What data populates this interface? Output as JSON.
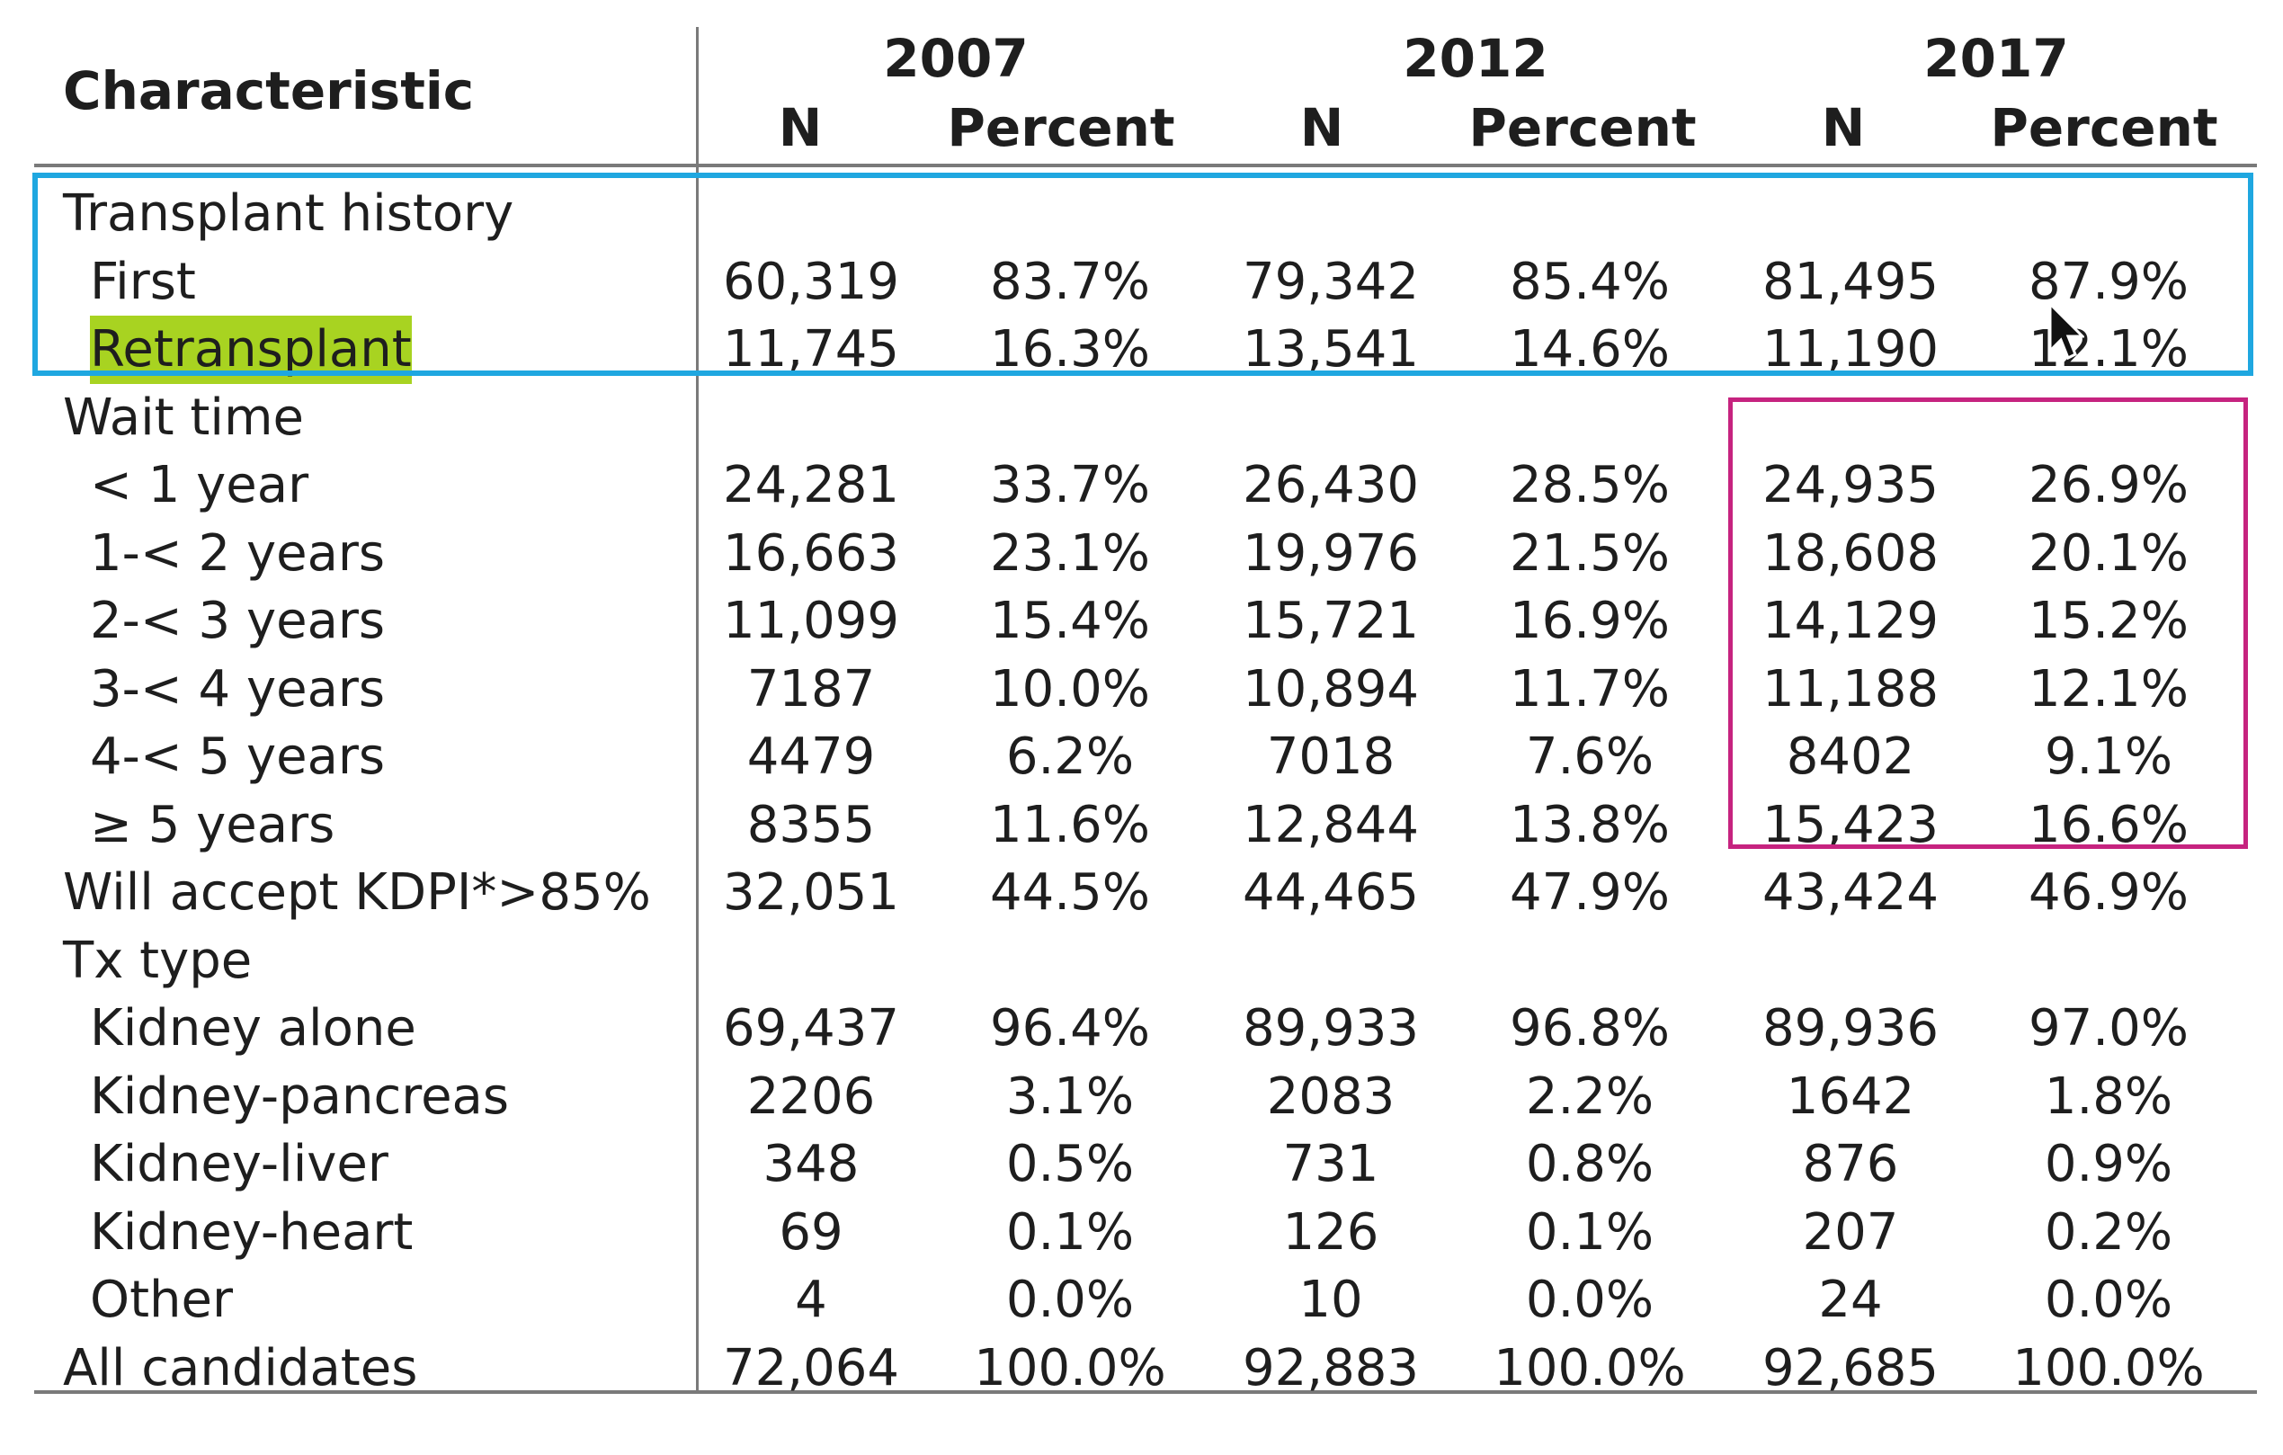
{
  "header": {
    "characteristic": "Characteristic",
    "years": [
      "2007",
      "2012",
      "2017"
    ],
    "n_label": "N",
    "percent_label": "Percent"
  },
  "rows": [
    {
      "label": "Transplant history",
      "indent": false,
      "cells": [
        "",
        "",
        "",
        "",
        "",
        ""
      ]
    },
    {
      "label": "First",
      "indent": true,
      "cells": [
        "60,319",
        "83.7%",
        "79,342",
        "85.4%",
        "81,495",
        "87.9%"
      ]
    },
    {
      "label": "Retransplant",
      "indent": true,
      "highlight": true,
      "cells": [
        "11,745",
        "16.3%",
        "13,541",
        "14.6%",
        "11,190",
        "12.1%"
      ]
    },
    {
      "label": "Wait time",
      "indent": false,
      "cells": [
        "",
        "",
        "",
        "",
        "",
        ""
      ]
    },
    {
      "label": "< 1 year",
      "indent": true,
      "cells": [
        "24,281",
        "33.7%",
        "26,430",
        "28.5%",
        "24,935",
        "26.9%"
      ]
    },
    {
      "label": "1-< 2 years",
      "indent": true,
      "cells": [
        "16,663",
        "23.1%",
        "19,976",
        "21.5%",
        "18,608",
        "20.1%"
      ]
    },
    {
      "label": "2-< 3 years",
      "indent": true,
      "cells": [
        "11,099",
        "15.4%",
        "15,721",
        "16.9%",
        "14,129",
        "15.2%"
      ]
    },
    {
      "label": "3-< 4 years",
      "indent": true,
      "cells": [
        "7187",
        "10.0%",
        "10,894",
        "11.7%",
        "11,188",
        "12.1%"
      ]
    },
    {
      "label": "4-< 5 years",
      "indent": true,
      "cells": [
        "4479",
        "6.2%",
        "7018",
        "7.6%",
        "8402",
        "9.1%"
      ]
    },
    {
      "label": "≥ 5 years",
      "indent": true,
      "cells": [
        "8355",
        "11.6%",
        "12,844",
        "13.8%",
        "15,423",
        "16.6%"
      ]
    },
    {
      "label": "Will accept KDPI*>85%",
      "indent": false,
      "cells": [
        "32,051",
        "44.5%",
        "44,465",
        "47.9%",
        "43,424",
        "46.9%"
      ]
    },
    {
      "label": "Tx type",
      "indent": false,
      "cells": [
        "",
        "",
        "",
        "",
        "",
        ""
      ]
    },
    {
      "label": "Kidney alone",
      "indent": true,
      "cells": [
        "69,437",
        "96.4%",
        "89,933",
        "96.8%",
        "89,936",
        "97.0%"
      ]
    },
    {
      "label": "Kidney-pancreas",
      "indent": true,
      "cells": [
        "2206",
        "3.1%",
        "2083",
        "2.2%",
        "1642",
        "1.8%"
      ]
    },
    {
      "label": "Kidney-liver",
      "indent": true,
      "cells": [
        "348",
        "0.5%",
        "731",
        "0.8%",
        "876",
        "0.9%"
      ]
    },
    {
      "label": "Kidney-heart",
      "indent": true,
      "cells": [
        "69",
        "0.1%",
        "126",
        "0.1%",
        "207",
        "0.2%"
      ]
    },
    {
      "label": "Other",
      "indent": true,
      "cells": [
        "4",
        "0.0%",
        "10",
        "0.0%",
        "24",
        "0.0%"
      ]
    },
    {
      "label": "All candidates",
      "indent": false,
      "cells": [
        "72,064",
        "100.0%",
        "92,883",
        "100.0%",
        "92,685",
        "100.0%"
      ]
    }
  ],
  "annotations": {
    "blue_box_color": "#1fa7e0",
    "magenta_box_color": "#c6237f",
    "highlight_color": "#a8d321"
  }
}
